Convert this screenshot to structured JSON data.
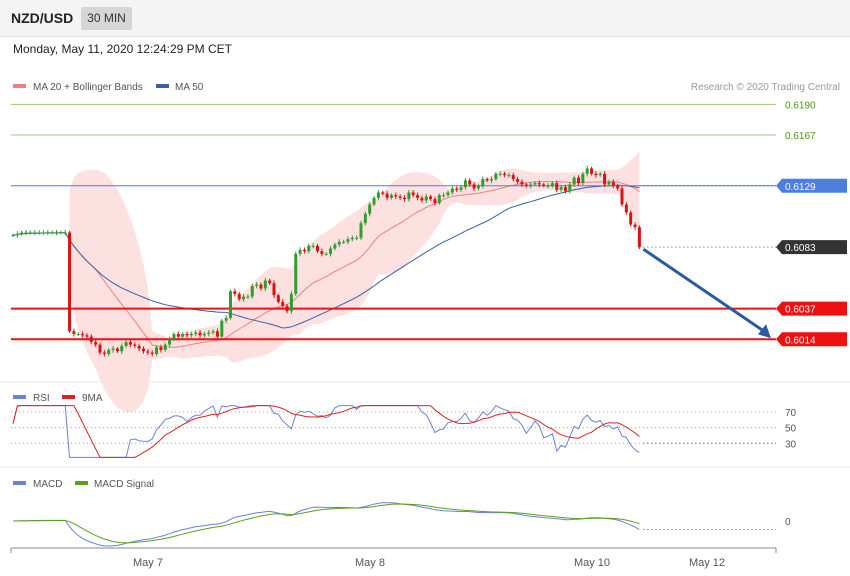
{
  "header": {
    "symbol": "NZD/USD",
    "timeframe": "30 MIN",
    "datetime": "Monday, May 11, 2020 12:24:29 PM CET"
  },
  "legend": {
    "ma20_label": "MA 20 + Bollinger Bands",
    "ma50_label": "MA 50",
    "credit": "Research © 2020 Trading Central",
    "rsi_label": "RSI",
    "rsi_ma_label": "9MA",
    "macd_label": "MACD",
    "macd_signal_label": "MACD Signal"
  },
  "colors": {
    "candle_up": "#2e9e2e",
    "candle_down": "#dd1111",
    "ma20": "#f08080",
    "band_fill": "#fde0e0",
    "ma50": "#3a5ea8",
    "level_green": "#9acd6e",
    "level_blue": "#4d7fe0",
    "level_red": "#ee1111",
    "arrow": "#2b5aa0",
    "rsi": "#6a82d8",
    "rsi_ma": "#dd2222",
    "macd": "#6a82d8",
    "macd_signal": "#5aa020"
  },
  "chart_data": [
    {
      "type": "candlestick",
      "panel": "price",
      "x_labels": [
        "May 7",
        "May 8",
        "May 10",
        "May 12"
      ],
      "ylim": [
        0.5985,
        0.6197
      ],
      "levels": [
        {
          "value": 0.619,
          "label": "0.6190",
          "kind": "resistance",
          "color": "#9acd6e"
        },
        {
          "value": 0.6167,
          "label": "0.6167",
          "kind": "resistance",
          "color": "#9acd6e"
        },
        {
          "value": 0.6129,
          "label": "0.6129",
          "kind": "pivot",
          "color": "#4d7fe0"
        },
        {
          "value": 0.6083,
          "label": "0.6083",
          "kind": "last",
          "color": "#333333"
        },
        {
          "value": 0.6037,
          "label": "0.6037",
          "kind": "support",
          "color": "#ee1111"
        },
        {
          "value": 0.6014,
          "label": "0.6014",
          "kind": "support",
          "color": "#ee1111"
        }
      ],
      "forecast_target": 0.6014,
      "closes": [
        0.6092,
        0.6093,
        0.6094,
        0.6094,
        0.6094,
        0.6094,
        0.6094,
        0.6094,
        0.6094,
        0.6094,
        0.6094,
        0.6094,
        0.6094,
        0.602,
        0.6018,
        0.6018,
        0.6017,
        0.6016,
        0.6012,
        0.601,
        0.6004,
        0.6003,
        0.6006,
        0.6007,
        0.6005,
        0.6009,
        0.6012,
        0.601,
        0.6009,
        0.6007,
        0.6005,
        0.6004,
        0.6003,
        0.6008,
        0.6006,
        0.601,
        0.6014,
        0.6018,
        0.6016,
        0.6018,
        0.6017,
        0.6018,
        0.6019,
        0.6017,
        0.6018,
        0.6019,
        0.602,
        0.6016,
        0.6028,
        0.603,
        0.605,
        0.6048,
        0.6044,
        0.6046,
        0.6046,
        0.6054,
        0.6055,
        0.6052,
        0.6058,
        0.6056,
        0.6047,
        0.6042,
        0.6039,
        0.6035,
        0.6048,
        0.6078,
        0.6081,
        0.608,
        0.6084,
        0.6084,
        0.608,
        0.6078,
        0.6078,
        0.6082,
        0.6085,
        0.6087,
        0.6087,
        0.6089,
        0.609,
        0.609,
        0.6101,
        0.6108,
        0.6115,
        0.612,
        0.6124,
        0.6123,
        0.612,
        0.6122,
        0.6121,
        0.612,
        0.6119,
        0.6124,
        0.6122,
        0.612,
        0.6118,
        0.6121,
        0.6119,
        0.6116,
        0.6122,
        0.6122,
        0.6124,
        0.6127,
        0.6126,
        0.6128,
        0.6133,
        0.613,
        0.6127,
        0.6129,
        0.6134,
        0.6133,
        0.6134,
        0.6138,
        0.6138,
        0.6137,
        0.6137,
        0.6134,
        0.6132,
        0.613,
        0.6129,
        0.613,
        0.6131,
        0.613,
        0.6129,
        0.6129,
        0.6131,
        0.6126,
        0.6128,
        0.6125,
        0.613,
        0.6135,
        0.6131,
        0.6138,
        0.6142,
        0.6138,
        0.6137,
        0.6138,
        0.613,
        0.6132,
        0.6129,
        0.6127,
        0.6115,
        0.6109,
        0.61,
        0.6098,
        0.6083
      ]
    },
    {
      "type": "line",
      "panel": "RSI",
      "series": [
        {
          "name": "RSI"
        },
        {
          "name": "9MA"
        }
      ],
      "ticks": [
        30,
        50,
        70
      ],
      "last_value": 30
    },
    {
      "type": "line",
      "panel": "MACD",
      "series": [
        {
          "name": "MACD"
        },
        {
          "name": "MACD Signal"
        }
      ],
      "ticks": [
        0
      ]
    }
  ]
}
